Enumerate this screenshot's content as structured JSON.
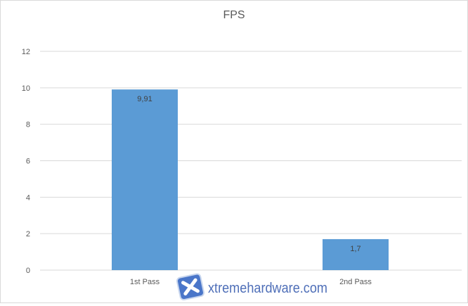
{
  "chart_data": {
    "type": "bar",
    "title": "FPS",
    "categories": [
      "1st Pass",
      "2nd Pass"
    ],
    "values": [
      9.91,
      1.7
    ],
    "data_labels": [
      "9,91",
      "1,7"
    ],
    "ylim": [
      0,
      12
    ],
    "yticks": [
      0,
      2,
      4,
      6,
      8,
      10,
      12
    ],
    "grid": true,
    "bar_color": "#5b9bd5",
    "xlabel": "",
    "ylabel": ""
  },
  "watermark": {
    "text": "xtremehardware.com"
  }
}
